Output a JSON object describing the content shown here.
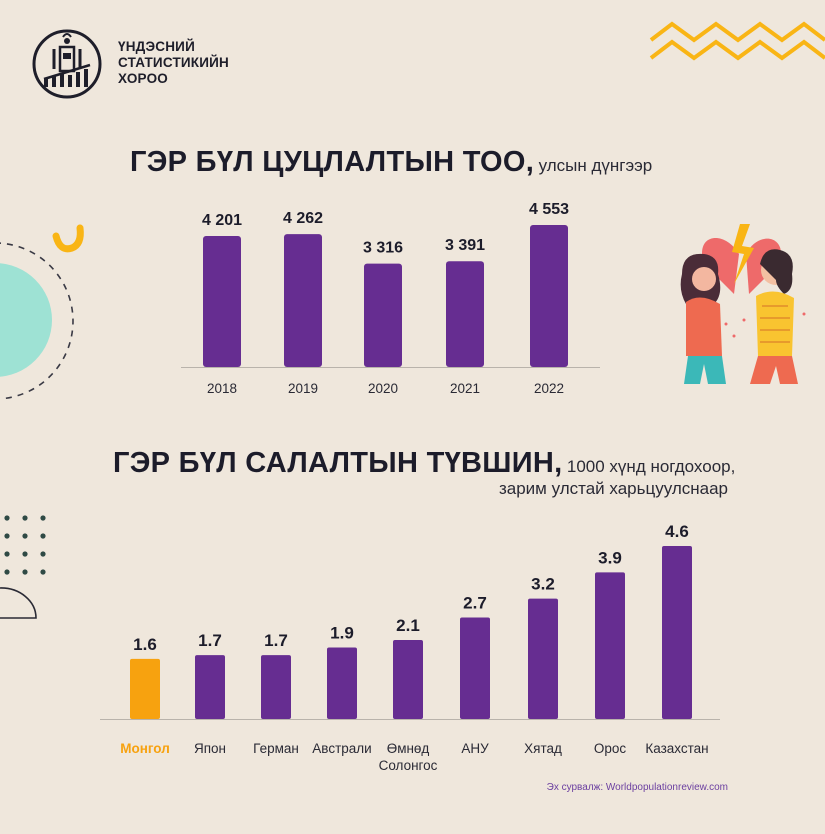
{
  "logo": {
    "org_name_lines": [
      "ҮНДЭСНИЙ",
      "СТАТИСТИКИЙН",
      "ХОРОО"
    ]
  },
  "colors": {
    "bar": "#662d91",
    "highlight": "#f7a20f",
    "accent_teal": "#9ee2d4",
    "accent_yellow": "#f9b515"
  },
  "section1": {
    "title": "ГЭР БҮЛ ЦУЦЛАЛТЫН ТОО,",
    "subtitle": "улсын дүнгээр"
  },
  "section2": {
    "title": "ГЭР БҮЛ САЛАЛТЫН ТҮВШИН,",
    "subtitle_line1": "1000 хүнд ногдохоор,",
    "subtitle_line2": "зарим улстай харьцуулснаар"
  },
  "source": "Эх сурвалж: Worldpopulationreview.com",
  "chart_data": [
    {
      "type": "bar",
      "title": "ГЭР БҮЛ ЦУЦЛАЛТЫН ТОО, улсын дүнгээр",
      "categories": [
        "2018",
        "2019",
        "2020",
        "2021",
        "2022"
      ],
      "values": [
        4201,
        4262,
        3316,
        3391,
        4553
      ],
      "value_labels": [
        "4 201",
        "4 262",
        "3 316",
        "3 391",
        "4 553"
      ],
      "ylim": [
        0,
        4700
      ],
      "grid": false
    },
    {
      "type": "bar",
      "title": "ГЭР БҮЛ САЛАЛТЫН ТҮВШИН, 1000 хүнд ногдохоор, зарим улстай харьцуулснаар",
      "categories": [
        "Монгол",
        "Япон",
        "Герман",
        "Австрали",
        "Өмнөд Солонгос",
        "АНУ",
        "Хятад",
        "Орос",
        "Казахстан"
      ],
      "category_lines": [
        [
          "Монгол"
        ],
        [
          "Япон"
        ],
        [
          "Герман"
        ],
        [
          "Австрали"
        ],
        [
          "Өмнөд",
          "Солонгос"
        ],
        [
          "АНУ"
        ],
        [
          "Хятад"
        ],
        [
          "Орос"
        ],
        [
          "Казахстан"
        ]
      ],
      "values": [
        1.6,
        1.7,
        1.7,
        1.9,
        2.1,
        2.7,
        3.2,
        3.9,
        4.6
      ],
      "value_labels": [
        "1.6",
        "1.7",
        "1.7",
        "1.9",
        "2.1",
        "2.7",
        "3.2",
        "3.9",
        "4.6"
      ],
      "highlight": "Монгол",
      "ylim": [
        0,
        4.6
      ],
      "grid": false
    }
  ]
}
